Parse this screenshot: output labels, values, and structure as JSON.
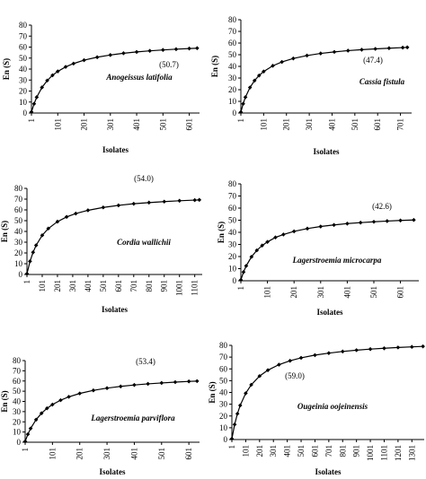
{
  "chart_data": [
    {
      "type": "line",
      "xlabel": "Isolates",
      "ylabel": "En (S)",
      "annotation": "(50.7)",
      "species": "Anogeissus latifolia",
      "color": "#000000",
      "marker": "diamond",
      "x": [
        1,
        11,
        21,
        41,
        61,
        81,
        101,
        131,
        161,
        201,
        251,
        301,
        351,
        401,
        451,
        501,
        551,
        601,
        631
      ],
      "values": [
        1,
        8.4,
        14.4,
        23.3,
        29.6,
        34.3,
        37.9,
        42.0,
        45.0,
        48.1,
        50.8,
        52.8,
        54.4,
        55.6,
        56.6,
        57.4,
        58.1,
        58.7,
        59.0
      ],
      "xlim": [
        1,
        640
      ],
      "xticks": [
        1,
        101,
        201,
        301,
        401,
        501,
        601
      ],
      "ylim": [
        0,
        80
      ],
      "yticks": [
        0,
        10,
        20,
        30,
        40,
        50,
        60,
        70,
        80
      ]
    },
    {
      "type": "line",
      "xlabel": "Isolates",
      "ylabel": "En (S)",
      "annotation": "(47.4)",
      "species": "Cassia fistula",
      "color": "#000000",
      "marker": "diamond",
      "x": [
        1,
        11,
        21,
        41,
        61,
        81,
        101,
        141,
        181,
        231,
        291,
        351,
        411,
        471,
        531,
        591,
        651,
        711,
        731
      ],
      "values": [
        0.8,
        7.9,
        13.6,
        21.9,
        27.8,
        32.2,
        35.6,
        40.5,
        43.8,
        46.8,
        49.3,
        51.1,
        52.4,
        53.5,
        54.3,
        55.0,
        55.6,
        56.1,
        56.3
      ],
      "xlim": [
        1,
        750
      ],
      "xticks": [
        1,
        101,
        201,
        301,
        401,
        501,
        601,
        701
      ],
      "ylim": [
        0,
        80
      ],
      "yticks": [
        0,
        10,
        20,
        30,
        40,
        50,
        60,
        70,
        80
      ]
    },
    {
      "type": "line",
      "xlabel": "Isolates",
      "ylabel": "En (S)",
      "annotation": "(54.0)",
      "species": "Cordia wallichii",
      "color": "#000000",
      "marker": "diamond",
      "x": [
        1,
        21,
        41,
        61,
        101,
        141,
        201,
        261,
        321,
        401,
        501,
        601,
        701,
        801,
        901,
        1001,
        1101,
        1131
      ],
      "values": [
        0.7,
        12.2,
        20.6,
        27.1,
        36.4,
        42.7,
        49.1,
        53.5,
        56.6,
        59.6,
        62.3,
        64.2,
        65.7,
        66.8,
        67.7,
        68.5,
        69.1,
        69.3
      ],
      "xlim": [
        1,
        1150
      ],
      "xticks": [
        1,
        101,
        201,
        301,
        401,
        501,
        601,
        701,
        801,
        901,
        1001,
        1101
      ],
      "ylim": [
        0,
        80
      ],
      "yticks": [
        0,
        10,
        20,
        30,
        40,
        50,
        60,
        70,
        80
      ]
    },
    {
      "type": "line",
      "xlabel": "Isolates",
      "ylabel": "En (S)",
      "annotation": "(42.6)",
      "species": "Lagerstroemia microcarpa",
      "color": "#000000",
      "marker": "diamond",
      "x": [
        1,
        11,
        21,
        41,
        61,
        81,
        101,
        131,
        161,
        201,
        251,
        301,
        351,
        401,
        451,
        501,
        551,
        601,
        651
      ],
      "values": [
        0.7,
        7.2,
        12.3,
        19.8,
        25.1,
        29.1,
        32.1,
        35.8,
        38.2,
        40.8,
        43.1,
        44.8,
        46.1,
        47.2,
        48.0,
        48.7,
        49.3,
        49.8,
        50.2
      ],
      "xlim": [
        1,
        670
      ],
      "xticks": [
        1,
        101,
        201,
        301,
        401,
        501,
        601
      ],
      "ylim": [
        0,
        80
      ],
      "yticks": [
        0,
        10,
        20,
        30,
        40,
        50,
        60,
        70,
        80
      ]
    },
    {
      "type": "line",
      "xlabel": "Isolates",
      "ylabel": "En (S)",
      "annotation": "(53.4)",
      "species": "Lagerstroemia parviflora",
      "color": "#000000",
      "marker": "diamond",
      "x": [
        1,
        11,
        21,
        41,
        61,
        81,
        101,
        131,
        161,
        201,
        251,
        301,
        351,
        401,
        451,
        501,
        551,
        601,
        631
      ],
      "values": [
        0.8,
        7.8,
        13.5,
        22.1,
        28.4,
        33.2,
        36.9,
        41.2,
        44.5,
        47.8,
        50.8,
        53.0,
        54.7,
        56.1,
        57.2,
        58.1,
        58.9,
        59.6,
        59.9
      ],
      "xlim": [
        1,
        640
      ],
      "xticks": [
        1,
        101,
        201,
        301,
        401,
        501,
        601
      ],
      "ylim": [
        0,
        80
      ],
      "yticks": [
        0,
        10,
        20,
        30,
        40,
        50,
        60,
        70,
        80
      ]
    },
    {
      "type": "line",
      "xlabel": "Isolates",
      "ylabel": "En (S)",
      "annotation": "(59.0)",
      "species": "Ougeinia oojeinensis",
      "color": "#000000",
      "marker": "diamond",
      "x": [
        1,
        21,
        41,
        61,
        101,
        141,
        201,
        261,
        341,
        421,
        501,
        601,
        701,
        801,
        901,
        1001,
        1101,
        1201,
        1301,
        1381
      ],
      "values": [
        0.7,
        12.8,
        21.9,
        29.0,
        39.3,
        46.5,
        53.9,
        58.9,
        63.6,
        66.9,
        69.4,
        71.7,
        73.4,
        74.8,
        75.9,
        76.8,
        77.5,
        78.2,
        78.7,
        79.1
      ],
      "xlim": [
        1,
        1390
      ],
      "xticks": [
        1,
        101,
        201,
        301,
        401,
        501,
        601,
        701,
        801,
        901,
        1001,
        1101,
        1201,
        1301
      ],
      "ylim": [
        0,
        80
      ],
      "yticks": [
        0,
        10,
        20,
        30,
        40,
        50,
        60,
        70,
        80
      ]
    }
  ]
}
